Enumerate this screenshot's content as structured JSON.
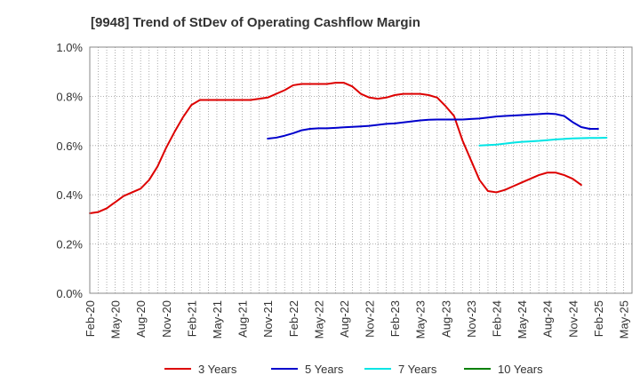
{
  "chart_data": {
    "type": "line",
    "title": "[9948]  Trend of StDev of Operating Cashflow Margin",
    "xlabel": "",
    "ylabel": "",
    "ylim": [
      0,
      1.0
    ],
    "yticks": [
      0.0,
      0.2,
      0.4,
      0.6,
      0.8,
      1.0
    ],
    "ytick_labels": [
      "0.0%",
      "0.2%",
      "0.4%",
      "0.6%",
      "0.8%",
      "1.0%"
    ],
    "xtick_labels": [
      "Feb-20",
      "May-20",
      "Aug-20",
      "Nov-20",
      "Feb-21",
      "May-21",
      "Aug-21",
      "Nov-21",
      "Feb-22",
      "May-22",
      "Aug-22",
      "Nov-22",
      "Feb-23",
      "May-23",
      "Aug-23",
      "Nov-23",
      "Feb-24",
      "May-24",
      "Aug-24",
      "Nov-24",
      "Feb-25",
      "May-25"
    ],
    "x_months_count": 64,
    "grid": true,
    "legend_position": "bottom",
    "series": [
      {
        "name": "3 Years",
        "color": "#dd0000",
        "start_index": 0,
        "values": [
          0.325,
          0.33,
          0.345,
          0.37,
          0.395,
          0.41,
          0.425,
          0.46,
          0.515,
          0.59,
          0.655,
          0.715,
          0.765,
          0.785,
          0.785,
          0.785,
          0.785,
          0.785,
          0.785,
          0.785,
          0.79,
          0.795,
          0.81,
          0.825,
          0.845,
          0.85,
          0.85,
          0.85,
          0.85,
          0.855,
          0.855,
          0.84,
          0.81,
          0.795,
          0.79,
          0.795,
          0.805,
          0.81,
          0.81,
          0.81,
          0.805,
          0.795,
          0.76,
          0.72,
          0.62,
          0.54,
          0.46,
          0.415,
          0.41,
          0.42,
          0.435,
          0.45,
          0.465,
          0.48,
          0.49,
          0.49,
          0.48,
          0.465,
          0.44
        ]
      },
      {
        "name": "5 Years",
        "color": "#0000cc",
        "start_index": 21,
        "values": [
          0.628,
          0.632,
          0.64,
          0.65,
          0.662,
          0.668,
          0.67,
          0.67,
          0.672,
          0.674,
          0.676,
          0.678,
          0.68,
          0.684,
          0.688,
          0.69,
          0.694,
          0.698,
          0.702,
          0.705,
          0.706,
          0.706,
          0.706,
          0.706,
          0.708,
          0.71,
          0.714,
          0.718,
          0.72,
          0.722,
          0.724,
          0.726,
          0.728,
          0.73,
          0.728,
          0.72,
          0.695,
          0.675,
          0.668,
          0.668
        ]
      },
      {
        "name": "7 Years",
        "color": "#00e5e5",
        "start_index": 46,
        "values": [
          0.6,
          0.602,
          0.604,
          0.608,
          0.612,
          0.615,
          0.617,
          0.619,
          0.622,
          0.625,
          0.627,
          0.629,
          0.63,
          0.631,
          0.631,
          0.632
        ]
      },
      {
        "name": "10 Years",
        "color": "#008000",
        "start_index": null,
        "values": []
      }
    ]
  }
}
